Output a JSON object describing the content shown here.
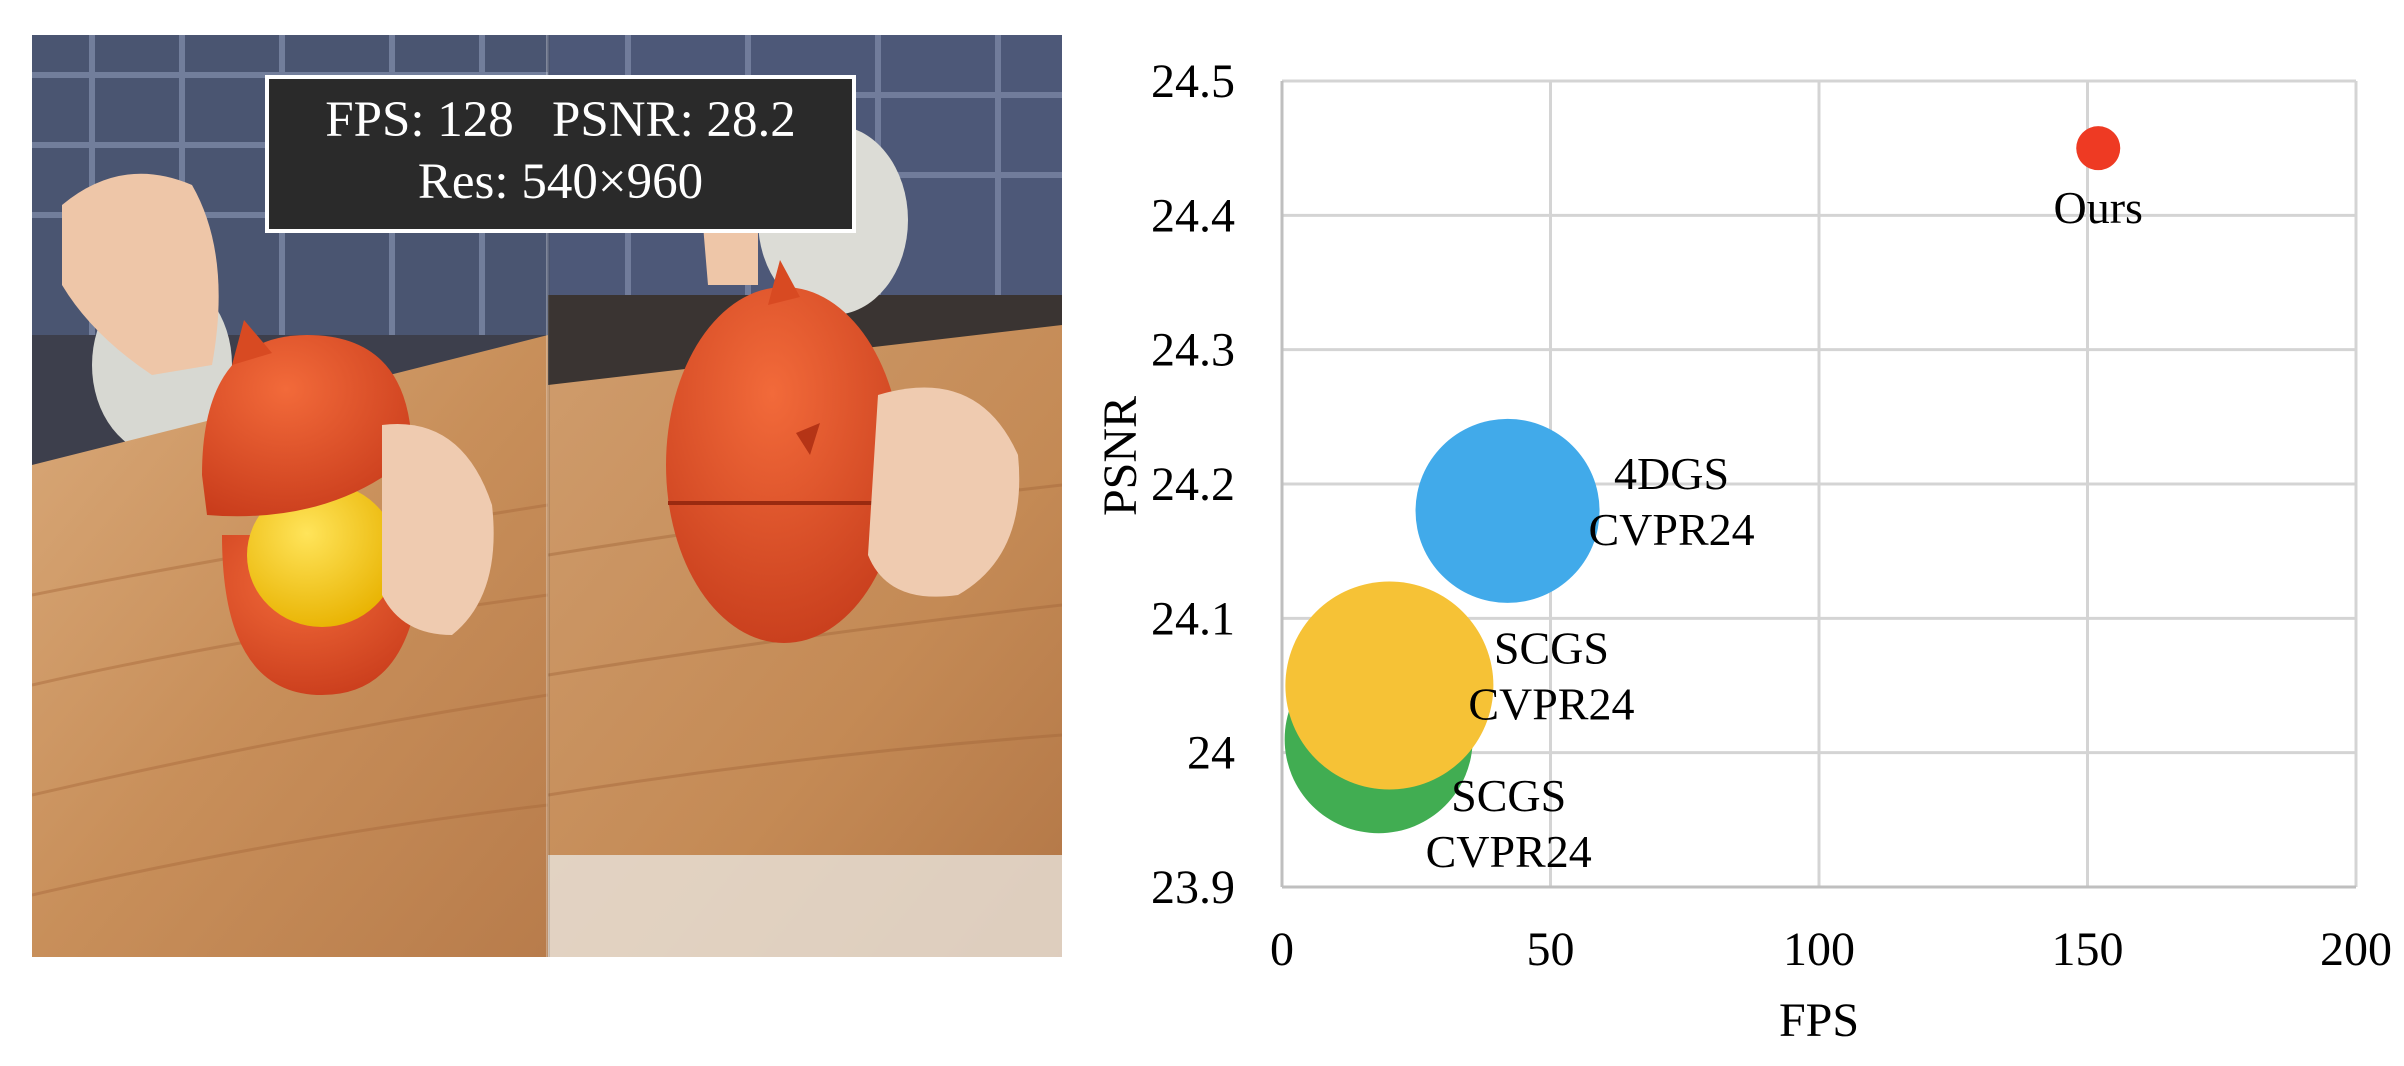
{
  "photo": {
    "overlay": {
      "line1": "FPS: 128   PSNR: 28.2",
      "line2": "Res: 540×960"
    }
  },
  "chart_data": {
    "type": "scatter",
    "title": "",
    "xlabel": "FPS",
    "ylabel": "PSNR",
    "xlim": [
      0,
      200
    ],
    "ylim": [
      23.9,
      24.5
    ],
    "xticks": [
      "0",
      "50",
      "100",
      "150",
      "200"
    ],
    "yticks": [
      "23.9",
      "24",
      "24.1",
      "24.2",
      "24.3",
      "24.4",
      "24.5"
    ],
    "grid": true,
    "points": [
      {
        "label": "SCGS",
        "sublabel": "CVPR24",
        "x": 18,
        "y": 24.01,
        "color": "#41ad52"
      },
      {
        "label": "SCGS",
        "sublabel": "CVPR24",
        "x": 20,
        "y": 24.05,
        "color": "#f6c236"
      },
      {
        "label": "4DGS",
        "sublabel": "CVPR24",
        "x": 42,
        "y": 24.18,
        "color": "#41aaea"
      },
      {
        "label": "Ours",
        "sublabel": "",
        "x": 152,
        "y": 24.45,
        "color": "#ee3a23"
      }
    ]
  }
}
